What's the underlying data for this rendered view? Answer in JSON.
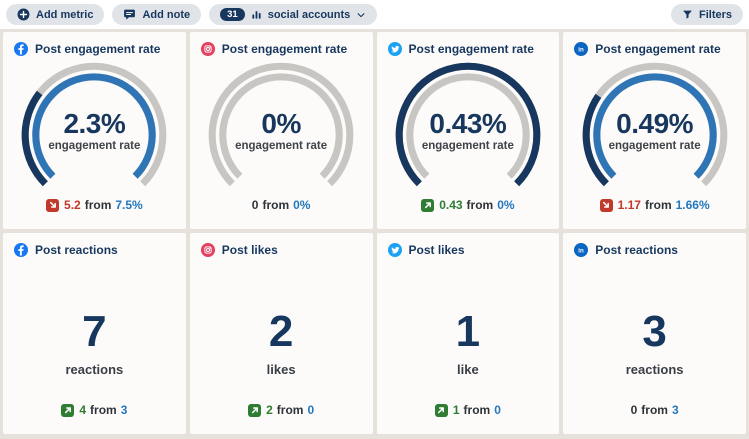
{
  "toolbar": {
    "add_metric_label": "Add metric",
    "add_note_label": "Add note",
    "accounts_count": "31",
    "accounts_label": "social accounts",
    "filters_label": "Filters"
  },
  "colors": {
    "navy": "#17375e",
    "blue": "#2f75b5",
    "track": "#c8c6c3",
    "green": "#2e7d32",
    "red": "#c0392b",
    "link_blue": "#2277bd",
    "facebook": "#1877f2",
    "instagram": "#e4405f",
    "twitter": "#1da1f2",
    "linkedin": "#0a66c2"
  },
  "chart_data": [
    {
      "type": "gauge",
      "network": "facebook",
      "title": "Post engagement rate",
      "value": 2.3,
      "previous": 7.5,
      "unit": "%"
    },
    {
      "type": "gauge",
      "network": "instagram",
      "title": "Post engagement rate",
      "value": 0,
      "previous": 0,
      "unit": "%"
    },
    {
      "type": "gauge",
      "network": "twitter",
      "title": "Post engagement rate",
      "value": 0.43,
      "previous": 0,
      "unit": "%"
    },
    {
      "type": "gauge",
      "network": "linkedin",
      "title": "Post engagement rate",
      "value": 0.49,
      "previous": 1.66,
      "unit": "%"
    },
    {
      "type": "number",
      "network": "facebook",
      "title": "Post reactions",
      "value": 7,
      "previous": 3
    },
    {
      "type": "number",
      "network": "instagram",
      "title": "Post likes",
      "value": 2,
      "previous": 0
    },
    {
      "type": "number",
      "network": "twitter",
      "title": "Post likes",
      "value": 1,
      "previous": 0
    },
    {
      "type": "number",
      "network": "linkedin",
      "title": "Post reactions",
      "value": 3,
      "previous": 3
    }
  ],
  "cards": [
    {
      "network": "facebook",
      "title": "Post engagement rate",
      "kind": "gauge",
      "value": 2.3,
      "previous": 7.5,
      "value_display": "2.3%",
      "value_label": "engagement rate",
      "delta": {
        "direction": "down",
        "amount": "5.2",
        "from_word": "from",
        "previous_display": "7.5%"
      }
    },
    {
      "network": "instagram",
      "title": "Post engagement rate",
      "kind": "gauge",
      "value": 0,
      "previous": 0,
      "value_display": "0%",
      "value_label": "engagement rate",
      "delta": {
        "direction": "none",
        "amount": "0",
        "from_word": "from",
        "previous_display": "0%"
      }
    },
    {
      "network": "twitter",
      "title": "Post engagement rate",
      "kind": "gauge",
      "value": 0.43,
      "previous": 0,
      "value_display": "0.43%",
      "value_label": "engagement rate",
      "delta": {
        "direction": "up",
        "amount": "0.43",
        "from_word": "from",
        "previous_display": "0%"
      }
    },
    {
      "network": "linkedin",
      "title": "Post engagement rate",
      "kind": "gauge",
      "value": 0.49,
      "previous": 1.66,
      "value_display": "0.49%",
      "value_label": "engagement rate",
      "delta": {
        "direction": "down",
        "amount": "1.17",
        "from_word": "from",
        "previous_display": "1.66%"
      }
    },
    {
      "network": "facebook",
      "title": "Post reactions",
      "kind": "number",
      "value_display": "7",
      "value_label": "reactions",
      "delta": {
        "direction": "up",
        "amount": "4",
        "from_word": "from",
        "previous_display": "3"
      }
    },
    {
      "network": "instagram",
      "title": "Post likes",
      "kind": "number",
      "value_display": "2",
      "value_label": "likes",
      "delta": {
        "direction": "up",
        "amount": "2",
        "from_word": "from",
        "previous_display": "0"
      }
    },
    {
      "network": "twitter",
      "title": "Post likes",
      "kind": "number",
      "value_display": "1",
      "value_label": "like",
      "delta": {
        "direction": "up",
        "amount": "1",
        "from_word": "from",
        "previous_display": "0"
      }
    },
    {
      "network": "linkedin",
      "title": "Post reactions",
      "kind": "number",
      "value_display": "3",
      "value_label": "reactions",
      "delta": {
        "direction": "none",
        "amount": "0",
        "from_word": "from",
        "previous_display": "3"
      }
    }
  ]
}
